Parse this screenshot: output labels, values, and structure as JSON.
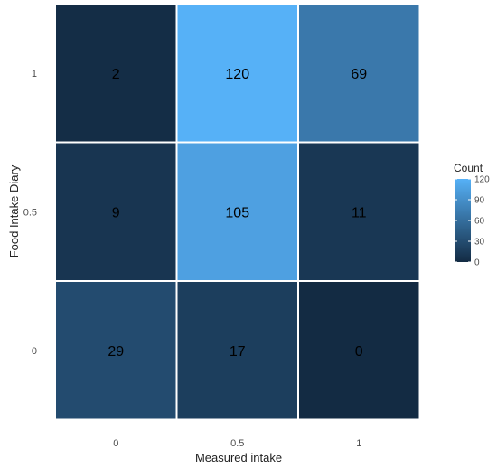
{
  "chart_data": {
    "type": "heatmap",
    "x_categories": [
      "0",
      "0.5",
      "1"
    ],
    "y_categories": [
      "0",
      "0.5",
      "1"
    ],
    "xlabel": "Measured intake",
    "ylabel": "Food Intake Diary",
    "cells": [
      {
        "x": "0",
        "y": "1",
        "value": 2
      },
      {
        "x": "0.5",
        "y": "1",
        "value": 120
      },
      {
        "x": "1",
        "y": "1",
        "value": 69
      },
      {
        "x": "0",
        "y": "0.5",
        "value": 9
      },
      {
        "x": "0.5",
        "y": "0.5",
        "value": 105
      },
      {
        "x": "1",
        "y": "0.5",
        "value": 11
      },
      {
        "x": "0",
        "y": "0",
        "value": 29
      },
      {
        "x": "0.5",
        "y": "0",
        "value": 17
      },
      {
        "x": "1",
        "y": "0",
        "value": 0
      }
    ],
    "color_scale": {
      "low": "#132B43",
      "high": "#56B1F7",
      "min": 0,
      "max": 120
    },
    "legend": {
      "title": "Count",
      "ticks": [
        0,
        30,
        60,
        90,
        120
      ],
      "placement": "right"
    },
    "grid": false
  }
}
